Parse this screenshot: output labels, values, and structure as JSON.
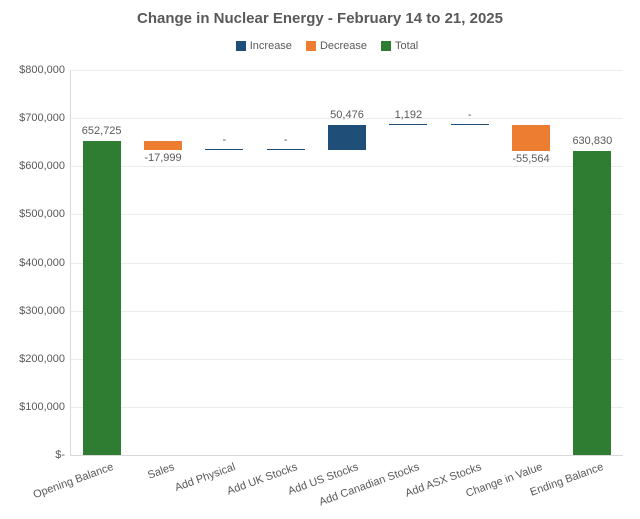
{
  "chart": {
    "type": "waterfall",
    "title": "Change in Nuclear Energy - February 14 to 21, 2025",
    "title_fontsize": 15,
    "title_color": "#595959",
    "font_family": "Segoe UI",
    "background_color": "#ffffff",
    "plot_background": "#ffffff",
    "grid_color": "#ececec",
    "axis_color": "#d9d9d9",
    "label_color": "#595959",
    "tick_fontsize": 11,
    "datalabel_fontsize": 11,
    "legend": [
      {
        "label": "Increase",
        "color": "#1f4e79"
      },
      {
        "label": "Decrease",
        "color": "#ed7d31"
      },
      {
        "label": "Total",
        "color": "#2e7d32"
      }
    ],
    "y_axis": {
      "min": 0,
      "max": 800000,
      "tick_step": 100000,
      "tick_labels": [
        "$-",
        "$100,000",
        "$200,000",
        "$300,000",
        "$400,000",
        "$500,000",
        "$600,000",
        "$700,000",
        "$800,000"
      ]
    },
    "categories": [
      "Opening Balance",
      "Sales",
      "Add Physical",
      "Add UK Stocks",
      "Add US Stocks",
      "Add  Canadian Stocks",
      "Add ASX Stocks",
      "Change in Value",
      "Ending Balance"
    ],
    "series": [
      {
        "kind": "total",
        "value": 652725,
        "label": "652,725",
        "base": 0,
        "top": 652725
      },
      {
        "kind": "decrease",
        "value": -17999,
        "label": "-17,999",
        "base": 634726,
        "top": 652725
      },
      {
        "kind": "increase",
        "value": 0,
        "label": "-",
        "base": 634726,
        "top": 634726
      },
      {
        "kind": "increase",
        "value": 0,
        "label": "-",
        "base": 634726,
        "top": 634726
      },
      {
        "kind": "increase",
        "value": 50476,
        "label": "50,476",
        "base": 634726,
        "top": 685202
      },
      {
        "kind": "increase",
        "value": 1192,
        "label": "1,192",
        "base": 685202,
        "top": 686394
      },
      {
        "kind": "increase",
        "value": 0,
        "label": "-",
        "base": 686394,
        "top": 686394
      },
      {
        "kind": "decrease",
        "value": -55564,
        "label": "-55,564",
        "base": 630830,
        "top": 686394
      },
      {
        "kind": "total",
        "value": 630830,
        "label": "630,830",
        "base": 0,
        "top": 630830
      }
    ],
    "colors": {
      "increase": "#1f4e79",
      "decrease": "#ed7d31",
      "total": "#2e7d32"
    },
    "xlabel_rotation_deg": -20,
    "bar_width_ratio": 0.62
  }
}
